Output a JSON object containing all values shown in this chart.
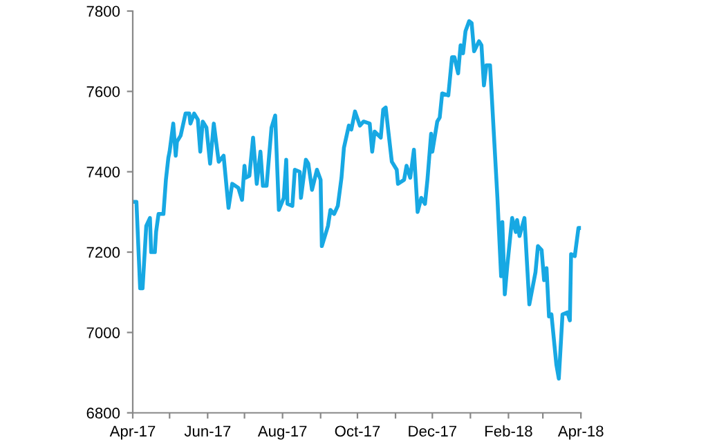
{
  "chart_data": {
    "type": "line",
    "x": [
      "2017-04-01",
      "2017-04-04",
      "2017-04-07",
      "2017-04-09",
      "2017-04-12",
      "2017-04-15",
      "2017-04-16",
      "2017-04-19",
      "2017-04-20",
      "2017-04-22",
      "2017-04-26",
      "2017-04-28",
      "2017-04-30",
      "2017-05-01",
      "2017-05-04",
      "2017-05-06",
      "2017-05-07",
      "2017-05-10",
      "2017-05-14",
      "2017-05-17",
      "2017-05-18",
      "2017-05-21",
      "2017-05-24",
      "2017-05-26",
      "2017-05-28",
      "2017-05-31",
      "2017-06-03",
      "2017-06-06",
      "2017-06-10",
      "2017-06-14",
      "2017-06-18",
      "2017-06-21",
      "2017-06-26",
      "2017-06-29",
      "2017-07-01",
      "2017-07-02",
      "2017-07-05",
      "2017-07-08",
      "2017-07-11",
      "2017-07-14",
      "2017-07-16",
      "2017-07-19",
      "2017-07-23",
      "2017-07-26",
      "2017-07-29",
      "2017-08-02",
      "2017-08-04",
      "2017-08-05",
      "2017-08-09",
      "2017-08-11",
      "2017-08-15",
      "2017-08-16",
      "2017-08-20",
      "2017-08-22",
      "2017-08-25",
      "2017-08-29",
      "2017-09-01",
      "2017-09-02",
      "2017-09-07",
      "2017-09-09",
      "2017-09-12",
      "2017-09-15",
      "2017-09-18",
      "2017-09-20",
      "2017-09-24",
      "2017-09-26",
      "2017-09-29",
      "2017-10-03",
      "2017-10-06",
      "2017-10-11",
      "2017-10-13",
      "2017-10-15",
      "2017-10-20",
      "2017-10-22",
      "2017-10-24",
      "2017-10-26",
      "2017-10-29",
      "2017-11-02",
      "2017-11-03",
      "2017-11-08",
      "2017-11-10",
      "2017-11-13",
      "2017-11-16",
      "2017-11-19",
      "2017-11-22",
      "2017-11-25",
      "2017-11-27",
      "2017-11-30",
      "2017-12-01",
      "2017-12-05",
      "2017-12-07",
      "2017-12-09",
      "2017-12-14",
      "2017-12-17",
      "2017-12-19",
      "2017-12-22",
      "2017-12-24",
      "2017-12-26",
      "2017-12-28",
      "2017-12-31",
      "2018-01-02",
      "2018-01-04",
      "2018-01-08",
      "2018-01-10",
      "2018-01-12",
      "2018-01-14",
      "2018-01-17",
      "2018-01-23",
      "2018-01-26",
      "2018-01-27",
      "2018-01-29",
      "2018-01-31",
      "2018-02-04",
      "2018-02-07",
      "2018-02-08",
      "2018-02-10",
      "2018-02-14",
      "2018-02-18",
      "2018-02-23",
      "2018-02-25",
      "2018-02-28",
      "2018-03-02",
      "2018-03-04",
      "2018-03-06",
      "2018-03-08",
      "2018-03-12",
      "2018-03-14",
      "2018-03-17",
      "2018-03-21",
      "2018-03-23",
      "2018-03-24",
      "2018-03-27",
      "2018-03-30",
      "2018-03-31"
    ],
    "series": [
      {
        "color": "#17a8e3",
        "values": [
          7325,
          7325,
          7110,
          7110,
          7265,
          7285,
          7200,
          7200,
          7250,
          7295,
          7295,
          7380,
          7435,
          7450,
          7520,
          7440,
          7475,
          7490,
          7545,
          7545,
          7520,
          7545,
          7530,
          7450,
          7525,
          7510,
          7420,
          7520,
          7425,
          7440,
          7310,
          7370,
          7360,
          7330,
          7415,
          7385,
          7390,
          7485,
          7370,
          7450,
          7365,
          7365,
          7510,
          7540,
          7305,
          7335,
          7430,
          7320,
          7315,
          7405,
          7400,
          7335,
          7430,
          7420,
          7355,
          7405,
          7380,
          7215,
          7265,
          7305,
          7295,
          7315,
          7385,
          7460,
          7515,
          7505,
          7550,
          7515,
          7525,
          7520,
          7450,
          7500,
          7485,
          7555,
          7560,
          7505,
          7425,
          7405,
          7370,
          7380,
          7415,
          7385,
          7455,
          7300,
          7335,
          7320,
          7380,
          7495,
          7450,
          7525,
          7535,
          7595,
          7590,
          7685,
          7685,
          7645,
          7715,
          7695,
          7750,
          7775,
          7770,
          7700,
          7725,
          7715,
          7615,
          7665,
          7665,
          7335,
          7140,
          7275,
          7095,
          7165,
          7285,
          7250,
          7280,
          7240,
          7285,
          7070,
          7150,
          7215,
          7205,
          7130,
          7160,
          7040,
          7045,
          6920,
          6885,
          7045,
          7050,
          7030,
          7195,
          7190,
          7260,
          7260
        ]
      }
    ],
    "xlim": [
      "2017-04-01",
      "2018-04-01"
    ],
    "xticks": [
      {
        "value": "2017-04-01",
        "label": "Apr-17"
      },
      {
        "value": "2017-05-01",
        "label": null
      },
      {
        "value": "2017-06-01",
        "label": "Jun-17"
      },
      {
        "value": "2017-07-01",
        "label": null
      },
      {
        "value": "2017-08-01",
        "label": "Aug-17"
      },
      {
        "value": "2017-09-01",
        "label": null
      },
      {
        "value": "2017-10-01",
        "label": "Oct-17"
      },
      {
        "value": "2017-11-01",
        "label": null
      },
      {
        "value": "2017-12-01",
        "label": "Dec-17"
      },
      {
        "value": "2018-01-01",
        "label": null
      },
      {
        "value": "2018-02-01",
        "label": "Feb-18"
      },
      {
        "value": "2018-03-01",
        "label": null
      },
      {
        "value": "2018-04-01",
        "label": "Apr-18"
      }
    ],
    "ylim": [
      6800,
      7800
    ],
    "yticks": [
      6800,
      7000,
      7200,
      7400,
      7600,
      7800
    ],
    "grid": false,
    "legend": false,
    "marker": "none",
    "line_style": "solid"
  }
}
